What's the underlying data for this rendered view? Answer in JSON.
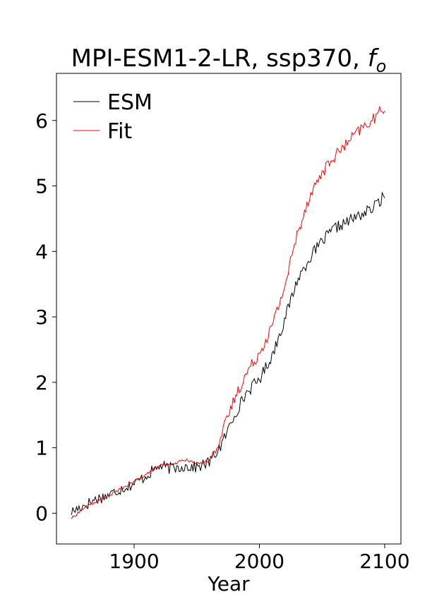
{
  "chart_data": {
    "type": "line",
    "title": "MPI-ESM1-2-LR, ssp370, ",
    "title_suffix_italic": "f",
    "title_suffix_subscript": "o",
    "xlabel": "Year",
    "ylabel": "",
    "xlim": [
      1838,
      2113
    ],
    "ylim": [
      -0.47,
      6.72
    ],
    "x_ticks": [
      1900,
      2000,
      2100
    ],
    "x_tick_labels": [
      "1900",
      "2000",
      "2100"
    ],
    "y_ticks": [
      0,
      1,
      2,
      3,
      4,
      5,
      6
    ],
    "y_tick_labels": [
      "0",
      "1",
      "2",
      "3",
      "4",
      "5",
      "6"
    ],
    "grid": false,
    "legend_position": "top-left",
    "series": [
      {
        "name": "ESM",
        "color": "#000000",
        "x": [
          1850,
          1860,
          1870,
          1880,
          1890,
          1900,
          1910,
          1920,
          1930,
          1940,
          1950,
          1960,
          1970,
          1980,
          1990,
          2000,
          2010,
          2020,
          2030,
          2040,
          2050,
          2060,
          2070,
          2080,
          2090,
          2100
        ],
        "values": [
          0.02,
          0.12,
          0.22,
          0.28,
          0.38,
          0.45,
          0.58,
          0.72,
          0.68,
          0.72,
          0.7,
          0.78,
          1.05,
          1.5,
          1.85,
          2.05,
          2.4,
          2.95,
          3.55,
          3.9,
          4.15,
          4.35,
          4.45,
          4.55,
          4.65,
          4.85
        ]
      },
      {
        "name": "Fit",
        "color": "#ff0000",
        "x": [
          1850,
          1860,
          1870,
          1880,
          1890,
          1900,
          1910,
          1920,
          1930,
          1940,
          1950,
          1960,
          1970,
          1980,
          1990,
          2000,
          2010,
          2020,
          2030,
          2040,
          2050,
          2060,
          2070,
          2080,
          2090,
          2100
        ],
        "values": [
          -0.08,
          0.08,
          0.18,
          0.27,
          0.38,
          0.48,
          0.6,
          0.73,
          0.74,
          0.82,
          0.76,
          0.8,
          1.2,
          1.75,
          2.15,
          2.45,
          2.85,
          3.45,
          4.25,
          4.85,
          5.2,
          5.45,
          5.65,
          5.85,
          6.0,
          6.2
        ]
      }
    ]
  }
}
